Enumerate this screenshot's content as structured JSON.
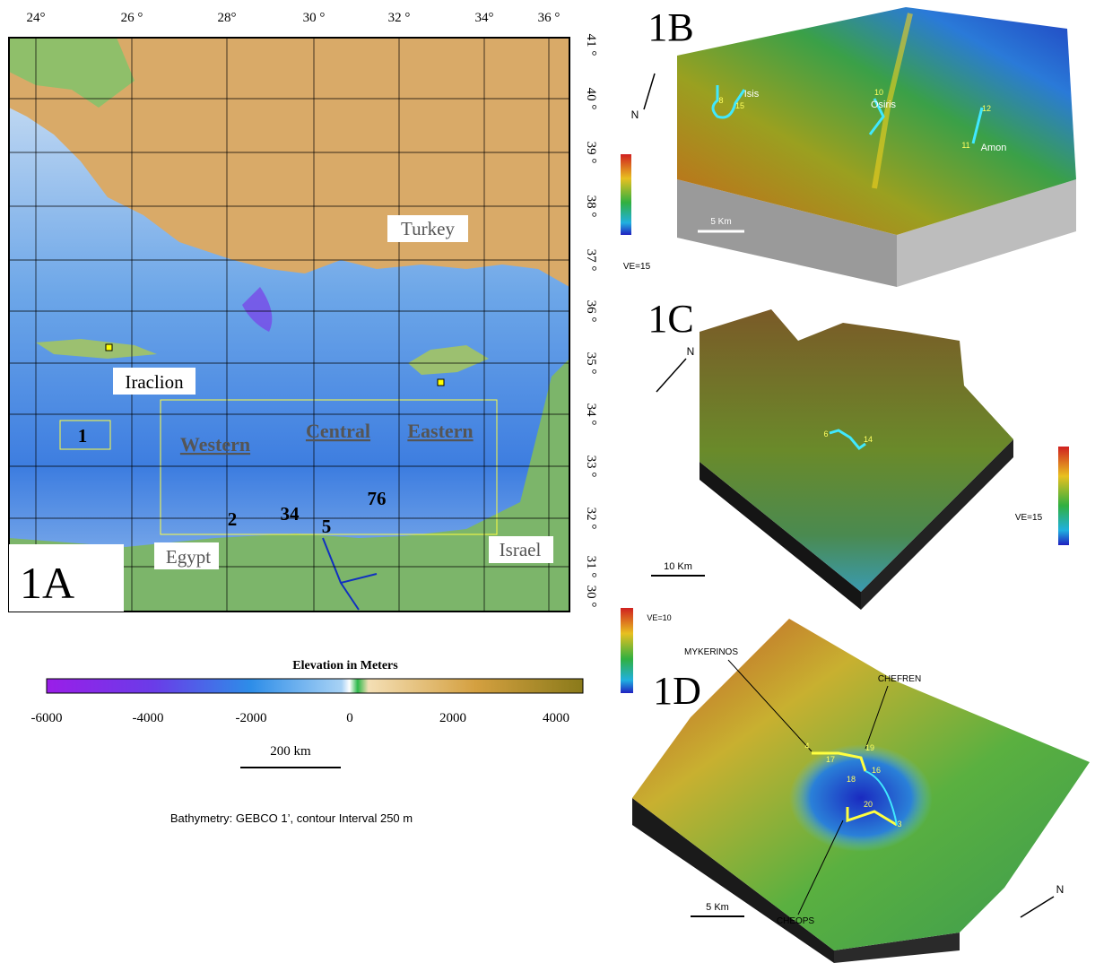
{
  "panel_a": {
    "label": "1A",
    "lon_labels": [
      "24°",
      "26 °",
      "28°",
      "30 °",
      "32 °",
      "34°",
      "36 °"
    ],
    "lat_labels": [
      "41 °",
      "40 °",
      "39 °",
      "38 °",
      "37 °",
      "36 °",
      "35 °",
      "34 °",
      "33 °",
      "32 °",
      "31 °",
      "30 °"
    ],
    "places": [
      "Turkey",
      "Iraclion",
      "Egypt",
      "Israel"
    ],
    "regions": [
      "Western",
      "Central",
      "Eastern"
    ],
    "sites": [
      "1",
      "2",
      "34",
      "5",
      "76"
    ],
    "colorbar": {
      "title": "Elevation in Meters",
      "ticks": [
        "-6000",
        "-4000",
        "-2000",
        "0",
        "2000",
        "4000"
      ]
    },
    "scale": "200 km",
    "caption": "Bathymetry: GEBCO 1’, contour Interval 250 m"
  },
  "panel_b": {
    "label": "1B",
    "north": "N",
    "names": [
      "Isis",
      "Osiris",
      "Amon"
    ],
    "numbers": [
      "8",
      "15",
      "10",
      "12",
      "11"
    ],
    "scale": "5 Km",
    "ve": "VE=15"
  },
  "panel_c": {
    "label": "1C",
    "north": "N",
    "numbers": [
      "6",
      "14"
    ],
    "scale": "10 Km",
    "ve": "VE=15"
  },
  "panel_d": {
    "label": "1D",
    "north": "N",
    "names": [
      "MYKERINOS",
      "CHEFREN",
      "CHEOPS"
    ],
    "numbers": [
      "4",
      "17",
      "19",
      "16",
      "18",
      "20",
      "3"
    ],
    "scale": "5 Km",
    "ve": "VE=10"
  }
}
